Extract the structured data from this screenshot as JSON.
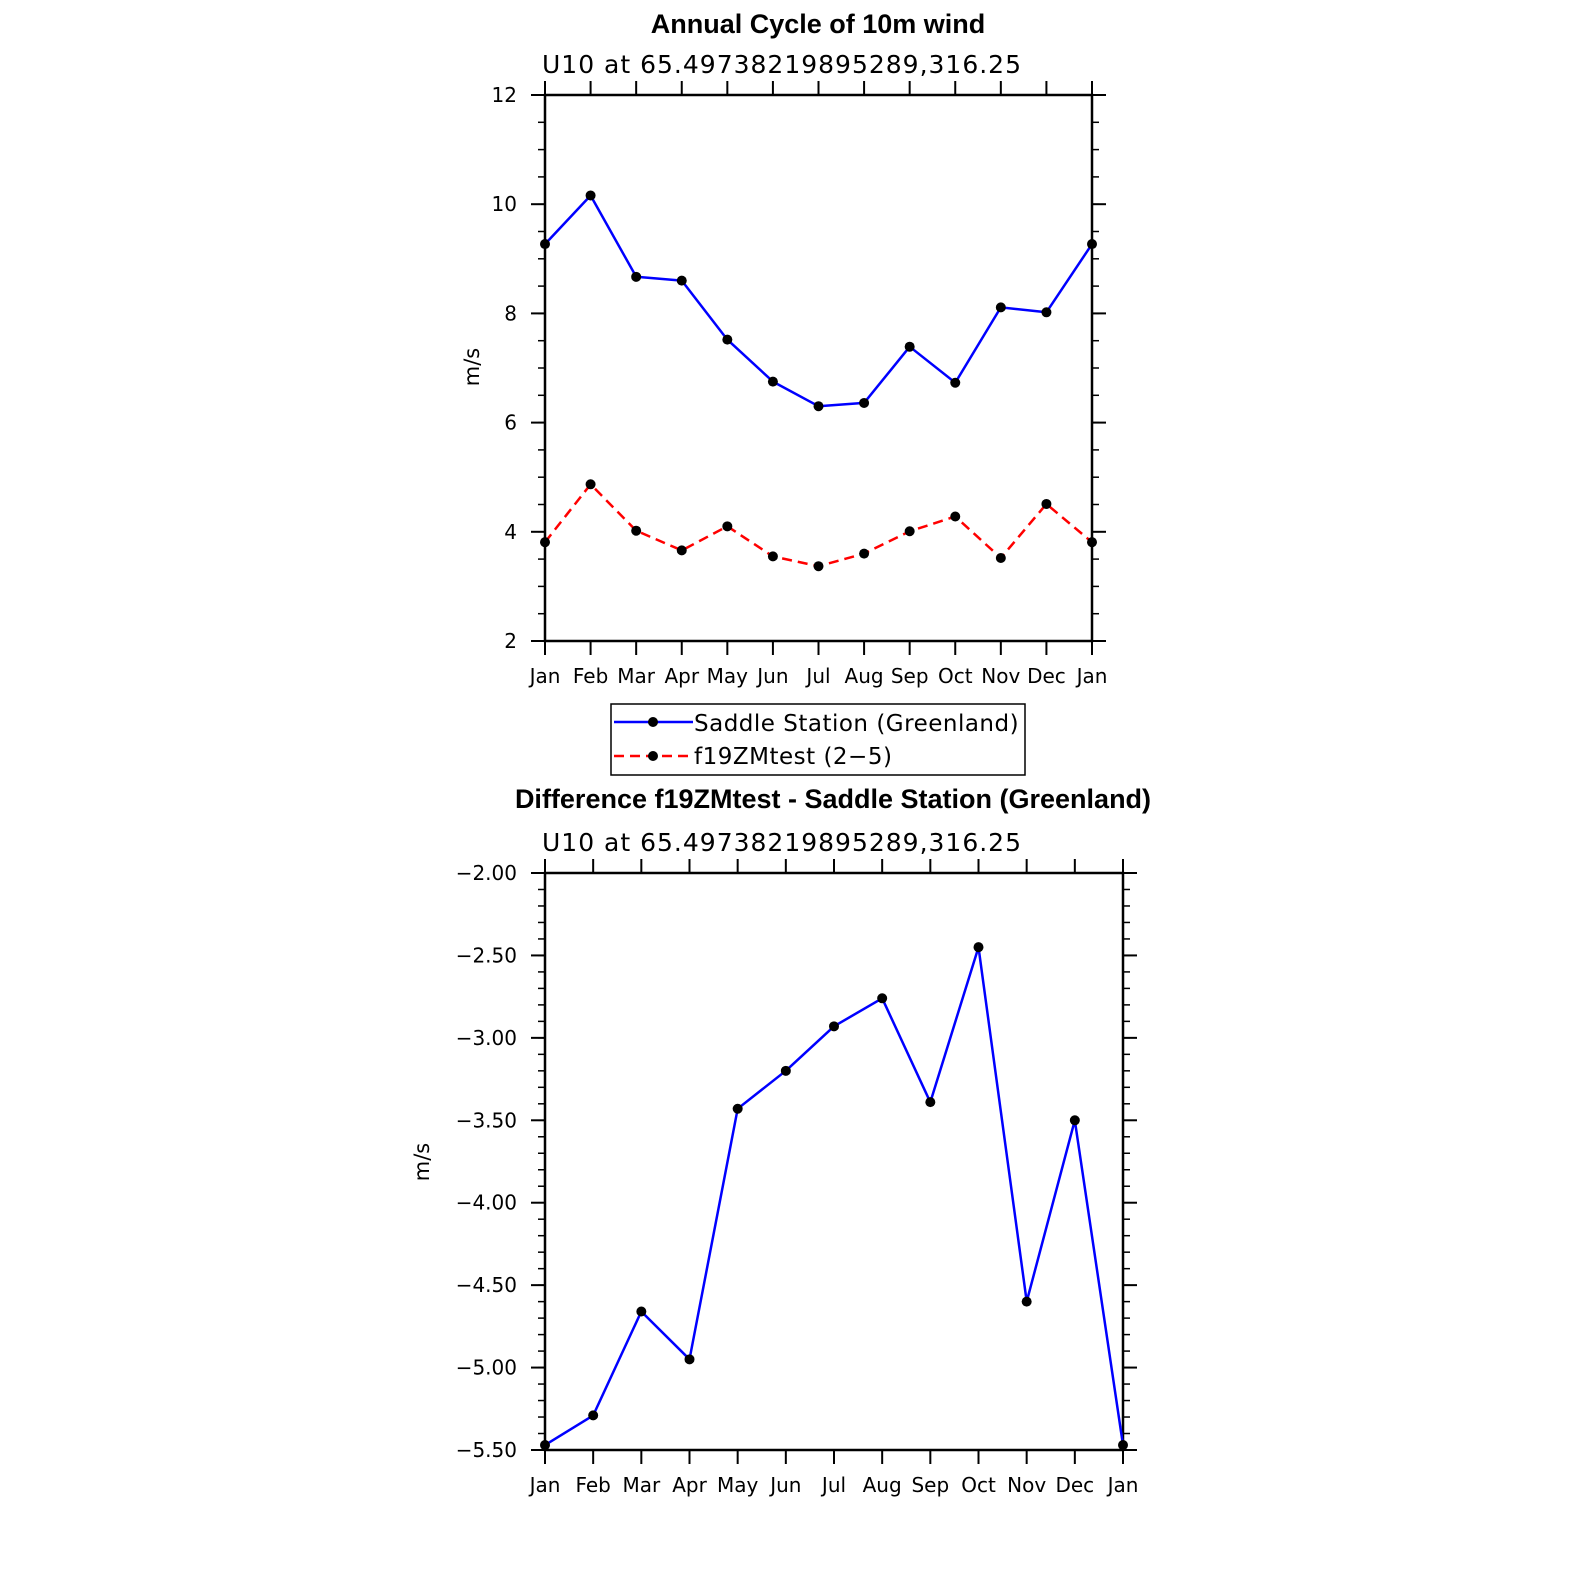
{
  "chart_data": [
    {
      "type": "line",
      "title": "Annual Cycle of 10m wind",
      "subtitle": "U10  at  65.49738219895289,316.25",
      "xlabel": "",
      "ylabel": "m/s",
      "categories": [
        "Jan",
        "Feb",
        "Mar",
        "Apr",
        "May",
        "Jun",
        "Jul",
        "Aug",
        "Sep",
        "Oct",
        "Nov",
        "Dec",
        "Jan"
      ],
      "ylim": [
        2,
        12
      ],
      "yticks": [
        "2",
        "4",
        "6",
        "8",
        "10",
        "12"
      ],
      "series": [
        {
          "name": "Saddle Station (Greenland)",
          "color": "#0000ff",
          "dash": "solid",
          "values": [
            9.27,
            10.16,
            8.67,
            8.6,
            7.52,
            6.75,
            6.3,
            6.36,
            7.39,
            6.73,
            8.11,
            8.02,
            9.27
          ]
        },
        {
          "name": "f19ZMtest (2−5)",
          "color": "#ff0000",
          "dash": "dashed",
          "values": [
            3.81,
            4.87,
            4.02,
            3.66,
            4.1,
            3.55,
            3.37,
            3.6,
            4.01,
            4.28,
            3.52,
            4.51,
            3.81
          ]
        }
      ],
      "legend": {
        "position": "bottom",
        "entries": [
          "Saddle Station (Greenland)",
          "f19ZMtest (2−5)"
        ]
      }
    },
    {
      "type": "line",
      "title": "Difference f19ZMtest - Saddle Station (Greenland)",
      "subtitle": "U10  at  65.49738219895289,316.25",
      "xlabel": "",
      "ylabel": "m/s",
      "categories": [
        "Jan",
        "Feb",
        "Mar",
        "Apr",
        "May",
        "Jun",
        "Jul",
        "Aug",
        "Sep",
        "Oct",
        "Nov",
        "Dec",
        "Jan"
      ],
      "ylim": [
        -5.5,
        -2.0
      ],
      "yticks": [
        "−5.50",
        "−5.00",
        "−4.50",
        "−4.00",
        "−3.50",
        "−3.00",
        "−2.50",
        "−2.00"
      ],
      "series": [
        {
          "name": "Difference",
          "color": "#0000ff",
          "dash": "solid",
          "values": [
            -5.47,
            -5.29,
            -4.66,
            -4.95,
            -3.43,
            -3.2,
            -2.93,
            -2.76,
            -3.39,
            -2.45,
            -4.6,
            -3.5,
            -5.47
          ]
        }
      ]
    }
  ]
}
